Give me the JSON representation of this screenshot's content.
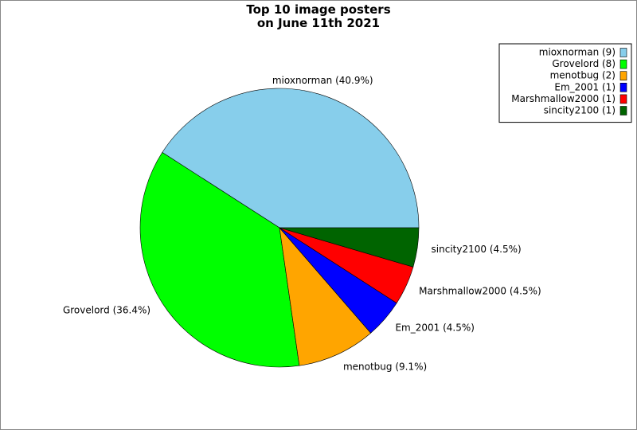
{
  "chart_data": {
    "type": "pie",
    "title": "Top 10 image posters\non June 11th 2021",
    "labels": [
      "mioxnorman (9)",
      "Grovelord (8)",
      "menotbug (2)",
      "Em_2001 (1)",
      "Marshmallow2000 (1)",
      "sincity2100 (1)"
    ],
    "values": [
      9,
      8,
      2,
      1,
      1,
      1
    ],
    "value_labels": [
      "mioxnorman (40.9%)",
      "Grovelord (36.4%)",
      "menotbug (9.1%)",
      "Em_2001 (4.5%)",
      "Marshmallow2000 (4.5%)",
      "sincity2100 (4.5%)"
    ],
    "colors": [
      "#87ceeb",
      "#00ff00",
      "#ffa500",
      "#0000ff",
      "#ff0000",
      "#006400"
    ],
    "legend": "upper right"
  }
}
